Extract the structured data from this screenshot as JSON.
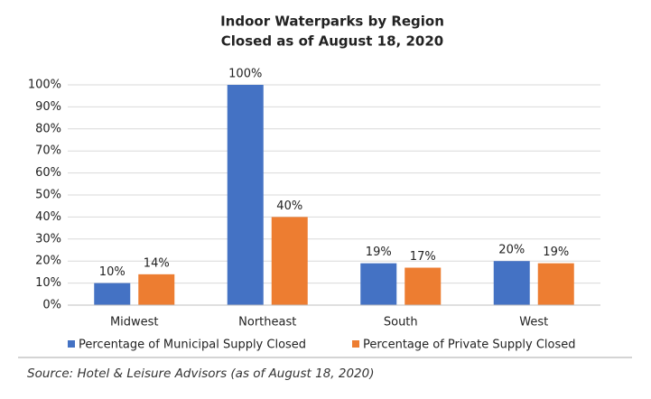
{
  "chart_data": {
    "type": "bar",
    "title": "Indoor Waterparks by Region",
    "subtitle": "Closed as of August 18, 2020",
    "categories": [
      "Midwest",
      "Northeast",
      "South",
      "West"
    ],
    "series": [
      {
        "name": "Percentage of Municipal Supply Closed",
        "color": "#4472c4",
        "values": [
          10,
          100,
          19,
          20
        ],
        "value_labels": [
          "10%",
          "100%",
          "19%",
          "20%"
        ]
      },
      {
        "name": "Percentage of Private Supply Closed",
        "color": "#ed7d31",
        "values": [
          14,
          40,
          17,
          19
        ],
        "value_labels": [
          "14%",
          "40%",
          "17%",
          "19%"
        ]
      }
    ],
    "ylim": [
      0,
      100
    ],
    "yticks": [
      {
        "value": 0,
        "label": "0%"
      },
      {
        "value": 10,
        "label": "10%"
      },
      {
        "value": 20,
        "label": "20%"
      },
      {
        "value": 30,
        "label": "30%"
      },
      {
        "value": 40,
        "label": "40%"
      },
      {
        "value": 50,
        "label": "50%"
      },
      {
        "value": 60,
        "label": "60%"
      },
      {
        "value": 70,
        "label": "70%"
      },
      {
        "value": 80,
        "label": "80%"
      },
      {
        "value": 90,
        "label": "90%"
      },
      {
        "value": 100,
        "label": "100%"
      }
    ],
    "grid": true,
    "legend": "bottom",
    "source": "Source: Hotel & Leisure Advisors (as of August 18, 2020)"
  }
}
